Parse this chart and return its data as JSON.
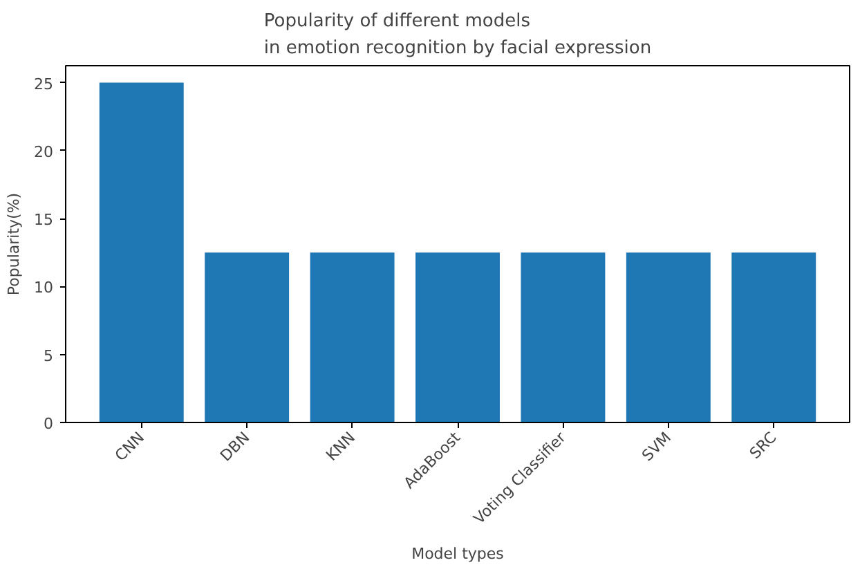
{
  "chart_data": {
    "type": "bar",
    "title": "Popularity of different models\nin emotion recognition by facial expression",
    "xlabel": "Model types",
    "ylabel": "Popularity(%)",
    "categories": [
      "CNN",
      "DBN",
      "KNN",
      "AdaBoost",
      "Voting Classifier",
      "SVM",
      "SRC"
    ],
    "values": [
      25,
      12.5,
      12.5,
      12.5,
      12.5,
      12.5,
      12.5
    ],
    "color": "#1f77b4",
    "ylim": [
      0,
      26.25
    ],
    "yticks": [
      0,
      5,
      10,
      15,
      20,
      25
    ],
    "grid": false
  }
}
